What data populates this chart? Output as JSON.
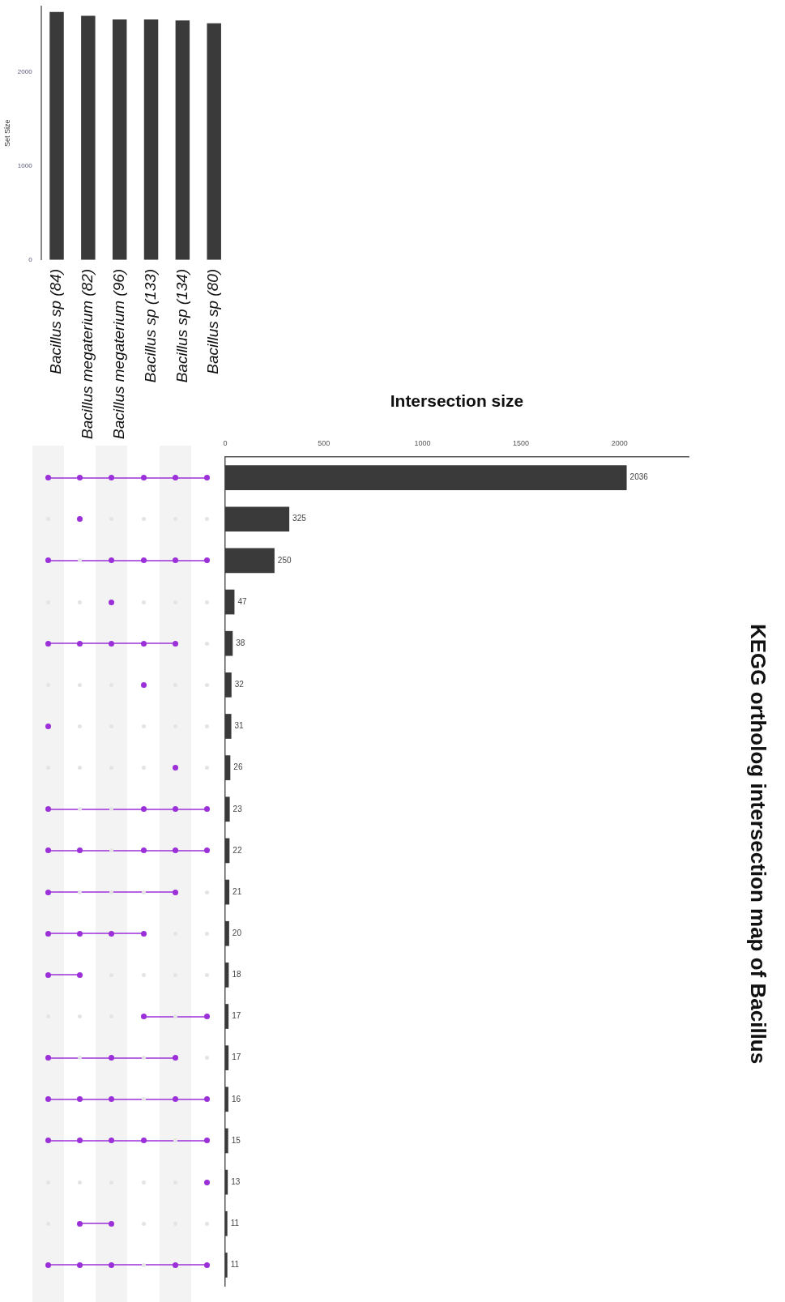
{
  "chart_data": [
    {
      "type": "bar",
      "categories": [
        "Bacillus sp (84)",
        "Bacillus megaterium (82)",
        "Bacillus megaterium (96)",
        "Bacillus sp (133)",
        "Bacillus sp (134)",
        "Bacillus sp (80)"
      ],
      "values": [
        2640,
        2600,
        2560,
        2560,
        2550,
        2520
      ],
      "color": "#3a3a3a",
      "ylabel": "Set Size",
      "ylim": [
        0,
        2700
      ],
      "yticks": [
        0,
        1000,
        2000
      ]
    },
    {
      "type": "bar",
      "orientation": "horizontal",
      "xlabel": "Intersection size",
      "categories": [
        null,
        null,
        null,
        null,
        null,
        null,
        null,
        null,
        null,
        null,
        null,
        null,
        null,
        null,
        null,
        null,
        null,
        null,
        null,
        null
      ],
      "values": [
        2036,
        325,
        250,
        47,
        38,
        32,
        31,
        26,
        23,
        22,
        21,
        20,
        18,
        17,
        17,
        16,
        15,
        13,
        11,
        11
      ],
      "color": "#3a3a3a",
      "xlim": [
        0,
        2350
      ],
      "xticks": [
        0,
        500,
        1000,
        1500,
        2000
      ],
      "data_labels": true
    },
    {
      "type": "other",
      "categories": [
        null,
        null,
        null,
        null,
        null,
        null
      ],
      "y_categories": [
        null,
        null,
        null,
        null,
        null,
        null,
        null,
        null,
        null,
        null,
        null,
        null,
        null,
        null,
        null,
        null,
        null,
        null,
        null,
        null
      ],
      "color": "#9b30d9",
      "cells": [
        [
          true,
          true,
          true,
          true,
          true,
          true
        ],
        [
          false,
          true,
          false,
          false,
          false,
          false
        ],
        [
          true,
          false,
          true,
          true,
          true,
          true
        ],
        [
          false,
          false,
          true,
          false,
          false,
          false
        ],
        [
          true,
          true,
          true,
          true,
          true,
          false
        ],
        [
          false,
          false,
          false,
          true,
          false,
          false
        ],
        [
          true,
          false,
          false,
          false,
          false,
          false
        ],
        [
          false,
          false,
          false,
          false,
          true,
          false
        ],
        [
          true,
          false,
          false,
          true,
          true,
          true
        ],
        [
          true,
          true,
          false,
          true,
          true,
          true
        ],
        [
          true,
          false,
          false,
          false,
          true,
          false
        ],
        [
          true,
          true,
          true,
          true,
          false,
          false
        ],
        [
          true,
          true,
          false,
          false,
          false,
          false
        ],
        [
          false,
          false,
          false,
          true,
          false,
          true
        ],
        [
          true,
          false,
          true,
          false,
          true,
          false
        ],
        [
          true,
          true,
          true,
          false,
          true,
          true
        ],
        [
          true,
          true,
          true,
          true,
          false,
          true
        ],
        [
          false,
          false,
          false,
          false,
          false,
          true
        ],
        [
          false,
          true,
          true,
          false,
          false,
          false
        ],
        [
          true,
          true,
          true,
          false,
          true,
          true
        ]
      ]
    },
    {
      "type": "other",
      "title": "KEGG ortholog intersection map of Bacillus"
    }
  ]
}
